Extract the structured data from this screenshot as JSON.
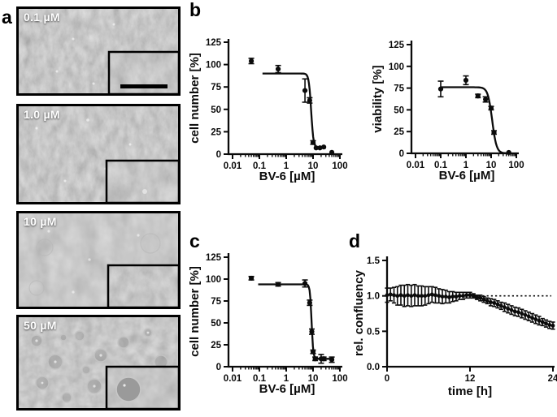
{
  "panel_labels": {
    "a": "a",
    "b": "b",
    "c": "c",
    "d": "d"
  },
  "panel_a": {
    "description": "phase-contrast micrographs with inset detail views",
    "images": [
      {
        "label": "0.1 µM",
        "has_scale_bar": true
      },
      {
        "label": "1.0 µM",
        "has_scale_bar": false
      },
      {
        "label": "10 µM",
        "has_scale_bar": false
      },
      {
        "label": "50 µM",
        "has_scale_bar": false
      }
    ]
  },
  "chart_data": [
    {
      "id": "b1",
      "panel": "b",
      "type": "scatter",
      "x_scale": "log",
      "xlabel": "BV-6 [µM]",
      "ylabel": "cell number [%]",
      "xlim": [
        0.01,
        100
      ],
      "ylim": [
        0,
        125
      ],
      "xticks": [
        0.01,
        0.1,
        1,
        10,
        100
      ],
      "xtick_labels": [
        "0.01",
        "0.1",
        "1",
        "10",
        "100"
      ],
      "yticks": [
        0,
        25,
        50,
        75,
        100,
        125
      ],
      "ytick_labels": [
        "0",
        "25",
        "50",
        "75",
        "100",
        "125"
      ],
      "points": [
        [
          0.05,
          104,
          3
        ],
        [
          0.5,
          95,
          4
        ],
        [
          5,
          71,
          13
        ],
        [
          7.5,
          60,
          3
        ],
        [
          10,
          13,
          2
        ],
        [
          13,
          7,
          1
        ],
        [
          18,
          7,
          1
        ],
        [
          25,
          8,
          1
        ],
        [
          50,
          2,
          1
        ]
      ],
      "fit_curve": {
        "model": "hill",
        "top": 90,
        "bottom": 7,
        "ic50": 8.5,
        "hill_slope": 10,
        "xmin": 0.13,
        "xmax": 30
      }
    },
    {
      "id": "b2",
      "panel": "b",
      "type": "scatter",
      "x_scale": "log",
      "xlabel": "BV-6 [µM]",
      "ylabel": "viability [%]",
      "xlim": [
        0.01,
        100
      ],
      "ylim": [
        0,
        125
      ],
      "xticks": [
        0.01,
        0.1,
        1,
        10,
        100
      ],
      "xtick_labels": [
        "0.01",
        "0.1",
        "1",
        "10",
        "100"
      ],
      "yticks": [
        0,
        25,
        50,
        75,
        100,
        125
      ],
      "ytick_labels": [
        "0",
        "25",
        "50",
        "75",
        "100",
        "125"
      ],
      "points": [
        [
          0.1,
          74,
          9
        ],
        [
          1,
          84,
          5
        ],
        [
          3,
          66,
          2
        ],
        [
          6,
          62,
          3
        ],
        [
          10,
          52,
          2
        ],
        [
          13,
          24,
          2
        ],
        [
          50,
          1,
          1
        ]
      ],
      "fit_curve": {
        "model": "hill",
        "top": 76,
        "bottom": 0,
        "ic50": 11,
        "hill_slope": 5,
        "xmin": 0.1,
        "xmax": 60
      }
    },
    {
      "id": "c",
      "panel": "c",
      "type": "scatter",
      "x_scale": "log",
      "xlabel": "BV-6 [µM]",
      "ylabel": "cell number [%]",
      "xlim": [
        0.01,
        100
      ],
      "ylim": [
        0,
        125
      ],
      "xticks": [
        0.01,
        0.1,
        1,
        10,
        100
      ],
      "xtick_labels": [
        "0.01",
        "0.1",
        "1",
        "10",
        "100"
      ],
      "yticks": [
        0,
        25,
        50,
        75,
        100,
        125
      ],
      "ytick_labels": [
        "0",
        "25",
        "50",
        "75",
        "100",
        "125"
      ],
      "points": [
        [
          0.05,
          101,
          2
        ],
        [
          0.5,
          94,
          2
        ],
        [
          5,
          95,
          4
        ],
        [
          7.5,
          73,
          3
        ],
        [
          9,
          40,
          3
        ],
        [
          10,
          17,
          2
        ],
        [
          12,
          9,
          2
        ],
        [
          20,
          9,
          5
        ],
        [
          25,
          9,
          2
        ],
        [
          50,
          8,
          3
        ]
      ],
      "fit_curve": {
        "model": "hill",
        "top": 94,
        "bottom": 9,
        "ic50": 8.8,
        "hill_slope": 14,
        "xmin": 0.09,
        "xmax": 60
      }
    },
    {
      "id": "d",
      "panel": "d",
      "type": "line",
      "x_scale": "linear",
      "xlabel": "time [h]",
      "ylabel": "rel. confluency",
      "xlim": [
        0,
        24
      ],
      "ylim": [
        0,
        1.5
      ],
      "xticks": [
        0,
        12,
        24
      ],
      "xtick_labels": [
        "0",
        "12",
        "24"
      ],
      "yticks": [
        0,
        0.5,
        1.0,
        1.5
      ],
      "ytick_labels": [
        "0.0",
        "0.5",
        "1.0",
        "1.5"
      ],
      "reference_line_y": 1.0,
      "points": [
        [
          0,
          1.01,
          0.1
        ],
        [
          0.5,
          1.02,
          0.09
        ],
        [
          1,
          1.01,
          0.11
        ],
        [
          1.5,
          1.0,
          0.13
        ],
        [
          2,
          1.01,
          0.14
        ],
        [
          2.5,
          1.0,
          0.15
        ],
        [
          3,
          1.01,
          0.15
        ],
        [
          3.5,
          1.0,
          0.15
        ],
        [
          4,
          1.01,
          0.15
        ],
        [
          4.5,
          1.0,
          0.14
        ],
        [
          5,
          1.0,
          0.14
        ],
        [
          5.5,
          1.0,
          0.13
        ],
        [
          6,
          1.01,
          0.12
        ],
        [
          6.5,
          1.02,
          0.11
        ],
        [
          7,
          1.01,
          0.11
        ],
        [
          7.5,
          1.0,
          0.1
        ],
        [
          8,
          0.99,
          0.1
        ],
        [
          8.5,
          0.99,
          0.09
        ],
        [
          9,
          0.98,
          0.08
        ],
        [
          9.5,
          0.99,
          0.07
        ],
        [
          10,
          0.99,
          0.06
        ],
        [
          10.5,
          1.0,
          0.05
        ],
        [
          11,
          1.0,
          0.05
        ],
        [
          11.5,
          1.01,
          0.04
        ],
        [
          12,
          1.01,
          0.04
        ],
        [
          12.5,
          1.0,
          0.03
        ],
        [
          13,
          0.98,
          0.03
        ],
        [
          13.5,
          0.97,
          0.04
        ],
        [
          14,
          0.95,
          0.04
        ],
        [
          14.5,
          0.93,
          0.04
        ],
        [
          15,
          0.91,
          0.05
        ],
        [
          15.5,
          0.9,
          0.05
        ],
        [
          16,
          0.88,
          0.05
        ],
        [
          16.5,
          0.86,
          0.05
        ],
        [
          17,
          0.84,
          0.06
        ],
        [
          17.5,
          0.82,
          0.06
        ],
        [
          18,
          0.8,
          0.06
        ],
        [
          18.5,
          0.78,
          0.06
        ],
        [
          19,
          0.77,
          0.06
        ],
        [
          19.5,
          0.75,
          0.06
        ],
        [
          20,
          0.73,
          0.06
        ],
        [
          20.5,
          0.71,
          0.06
        ],
        [
          21,
          0.69,
          0.06
        ],
        [
          21.5,
          0.67,
          0.06
        ],
        [
          22,
          0.65,
          0.06
        ],
        [
          22.5,
          0.63,
          0.05
        ],
        [
          23,
          0.61,
          0.05
        ],
        [
          23.5,
          0.59,
          0.05
        ],
        [
          24,
          0.58,
          0.05
        ]
      ]
    }
  ],
  "colors": {
    "axis": "#0b0b0b",
    "data": "#0b0b0b",
    "micrograph_bg": "#8f8f8f"
  }
}
